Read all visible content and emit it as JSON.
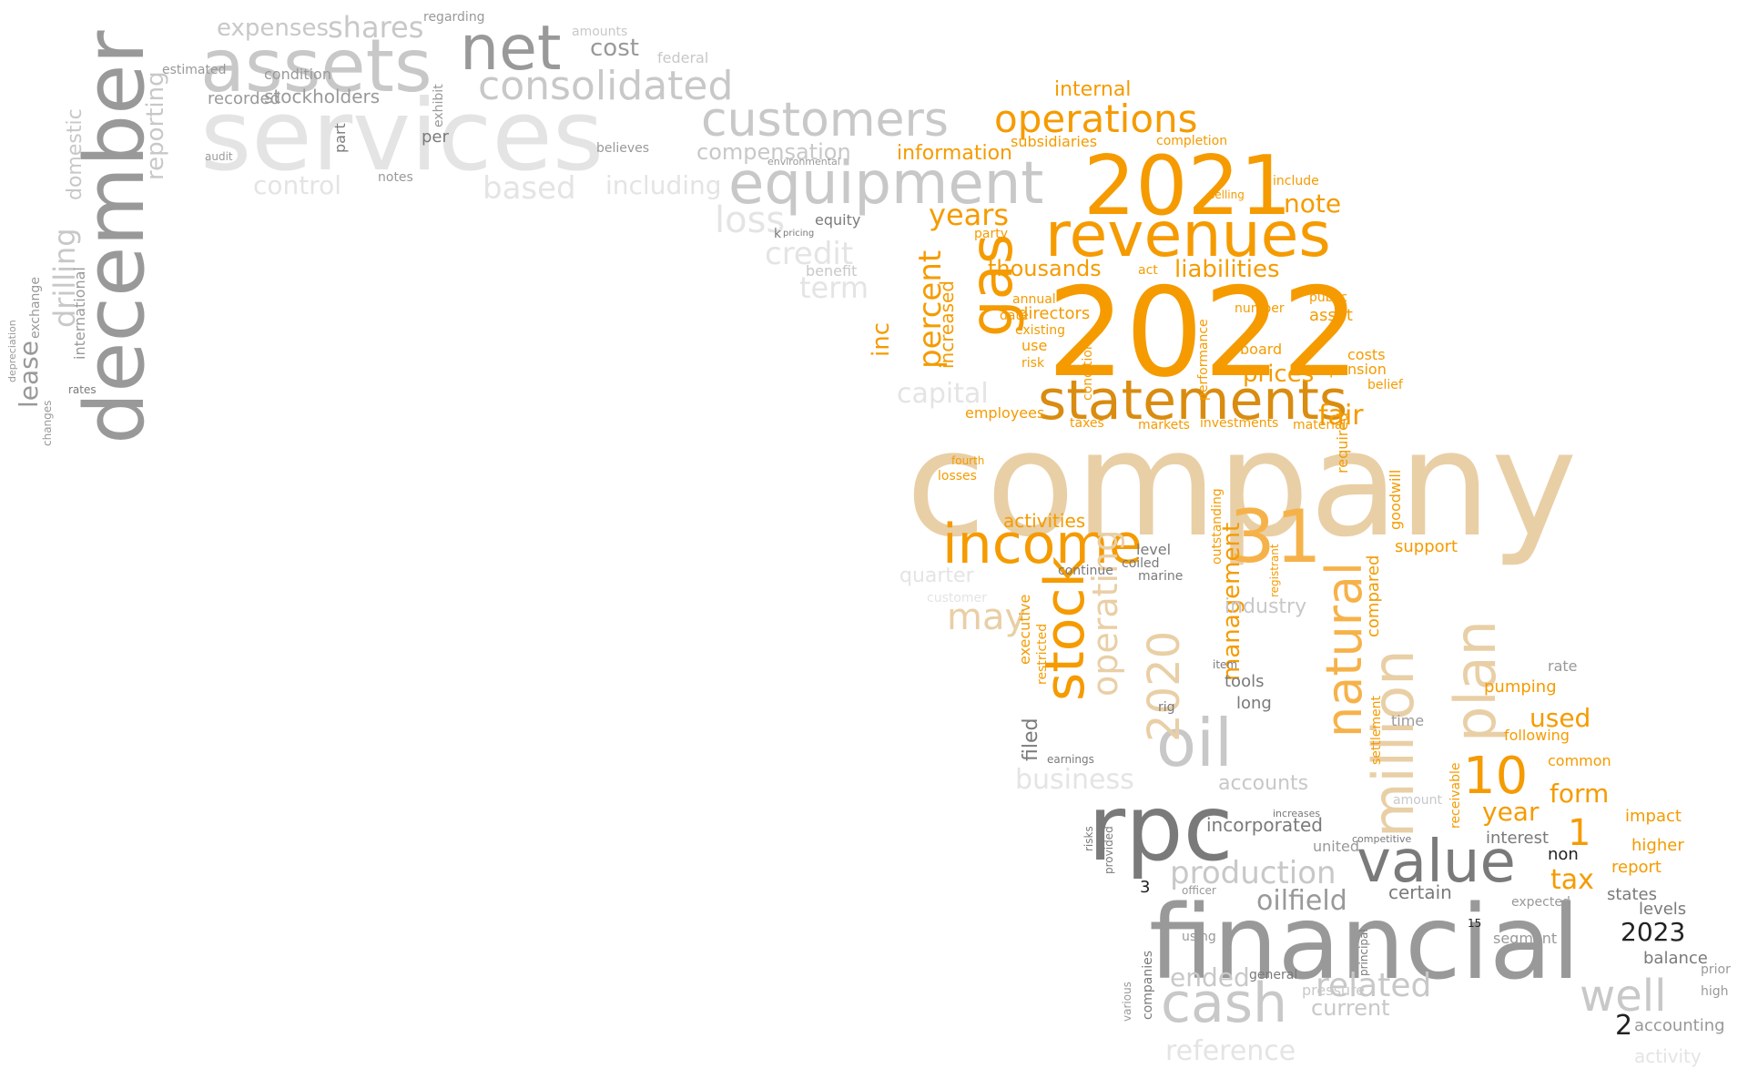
{
  "palette": {
    "orange": "#f59b00",
    "orange_mid": "#f5a623",
    "dark_orange": "#d98c10",
    "gold": "#f6b24a",
    "tan": "#e9cfa6",
    "tan_dark": "#dfb884",
    "gray": "#999999",
    "gray_dark": "#7a7a7a",
    "gray_light": "#c8c8c8",
    "gray_faint": "#e4e4e4",
    "black": "#222222"
  },
  "words": [
    {
      "text": "company",
      "color": "tan"
    },
    {
      "text": "2022",
      "color": "orange"
    },
    {
      "text": "services",
      "color": "gray_faint"
    },
    {
      "text": "financial",
      "color": "gray"
    },
    {
      "text": "december",
      "color": "gray"
    },
    {
      "text": "rpc",
      "color": "gray_dark"
    },
    {
      "text": "statements",
      "color": "dark_orange"
    },
    {
      "text": "2021",
      "color": "orange"
    },
    {
      "text": "revenues",
      "color": "orange"
    },
    {
      "text": "assets",
      "color": "gray_light"
    },
    {
      "text": "net",
      "color": "gray"
    },
    {
      "text": "equipment",
      "color": "gray_light"
    },
    {
      "text": "income",
      "color": "orange"
    },
    {
      "text": "value",
      "color": "gray_dark"
    },
    {
      "text": "oil",
      "color": "gray_light"
    },
    {
      "text": "31",
      "color": "gold"
    },
    {
      "text": "customers",
      "color": "gray_light"
    },
    {
      "text": "consolidated",
      "color": "gray_light"
    },
    {
      "text": "operations",
      "color": "orange"
    },
    {
      "text": "gas",
      "color": "orange"
    },
    {
      "text": "stock",
      "color": "orange"
    },
    {
      "text": "million",
      "color": "tan"
    },
    {
      "text": "natural",
      "color": "gold"
    },
    {
      "text": "cash",
      "color": "gray_light"
    },
    {
      "text": "well",
      "color": "gray_light"
    },
    {
      "text": "plan",
      "color": "tan"
    },
    {
      "text": "10",
      "color": "orange"
    },
    {
      "text": "2020",
      "color": "tan"
    },
    {
      "text": "may",
      "color": "tan"
    },
    {
      "text": "related",
      "color": "gray_light"
    },
    {
      "text": "production",
      "color": "gray_light"
    },
    {
      "text": "oilfield",
      "color": "gray"
    },
    {
      "text": "shares",
      "color": "gray_light"
    },
    {
      "text": "expenses",
      "color": "gray_light"
    },
    {
      "text": "cost",
      "color": "gray"
    },
    {
      "text": "percent",
      "color": "orange"
    },
    {
      "text": "years",
      "color": "orange"
    },
    {
      "text": "liabilities",
      "color": "orange"
    },
    {
      "text": "thousands",
      "color": "orange"
    },
    {
      "text": "information",
      "color": "orange"
    },
    {
      "text": "internal",
      "color": "orange"
    },
    {
      "text": "management",
      "color": "orange"
    },
    {
      "text": "operating",
      "color": "tan"
    },
    {
      "text": "drilling",
      "color": "gray_light"
    },
    {
      "text": "reporting",
      "color": "gray_light"
    },
    {
      "text": "lease",
      "color": "gray"
    },
    {
      "text": "control",
      "color": "gray_faint"
    },
    {
      "text": "based",
      "color": "gray_faint"
    },
    {
      "text": "including",
      "color": "gray_faint"
    },
    {
      "text": "compensation",
      "color": "gray_light"
    },
    {
      "text": "loss",
      "color": "gray_faint"
    },
    {
      "text": "credit",
      "color": "gray_faint"
    },
    {
      "text": "term",
      "color": "gray_faint"
    },
    {
      "text": "capital",
      "color": "gray_faint"
    },
    {
      "text": "stockholders",
      "color": "gray"
    },
    {
      "text": "recorded",
      "color": "gray"
    },
    {
      "text": "condition",
      "color": "gray"
    },
    {
      "text": "estimated",
      "color": "gray"
    },
    {
      "text": "amounts",
      "color": "gray_light"
    },
    {
      "text": "federal",
      "color": "gray_light"
    },
    {
      "text": "note",
      "color": "orange"
    },
    {
      "text": "prices",
      "color": "orange"
    },
    {
      "text": "costs",
      "color": "orange"
    },
    {
      "text": "pension",
      "color": "orange"
    },
    {
      "text": "fair",
      "color": "orange"
    },
    {
      "text": "asset",
      "color": "orange"
    },
    {
      "text": "subsidiaries",
      "color": "orange"
    },
    {
      "text": "completion",
      "color": "orange"
    },
    {
      "text": "employees",
      "color": "orange"
    },
    {
      "text": "activities",
      "color": "orange"
    },
    {
      "text": "inc",
      "color": "orange"
    },
    {
      "text": "increased",
      "color": "orange"
    },
    {
      "text": "directors",
      "color": "orange"
    },
    {
      "text": "form",
      "color": "orange"
    },
    {
      "text": "tax",
      "color": "orange"
    },
    {
      "text": "year",
      "color": "orange"
    },
    {
      "text": "used",
      "color": "orange"
    },
    {
      "text": "report",
      "color": "orange"
    },
    {
      "text": "higher",
      "color": "orange"
    },
    {
      "text": "impact",
      "color": "orange"
    },
    {
      "text": "pumping",
      "color": "orange"
    },
    {
      "text": "following",
      "color": "orange"
    },
    {
      "text": "common",
      "color": "orange"
    },
    {
      "text": "compared",
      "color": "orange"
    },
    {
      "text": "support",
      "color": "orange"
    },
    {
      "text": "goodwill",
      "color": "orange"
    },
    {
      "text": "incorporated",
      "color": "gray_dark"
    },
    {
      "text": "accounts",
      "color": "gray_light"
    },
    {
      "text": "certain",
      "color": "gray_dark"
    },
    {
      "text": "ended",
      "color": "gray_light"
    },
    {
      "text": "current",
      "color": "gray_light"
    },
    {
      "text": "industry",
      "color": "gray_light"
    },
    {
      "text": "tools",
      "color": "gray_dark"
    },
    {
      "text": "long",
      "color": "gray_dark"
    },
    {
      "text": "business",
      "color": "gray_faint"
    },
    {
      "text": "interest",
      "color": "gray_dark"
    },
    {
      "text": "balance",
      "color": "gray_dark"
    },
    {
      "text": "accounting",
      "color": "gray"
    },
    {
      "text": "2023",
      "color": "black"
    },
    {
      "text": "1",
      "color": "orange"
    },
    {
      "text": "2",
      "color": "black"
    },
    {
      "text": "3",
      "color": "black"
    },
    {
      "text": "states",
      "color": "gray_dark"
    },
    {
      "text": "levels",
      "color": "gray_dark"
    },
    {
      "text": "segment",
      "color": "gray"
    },
    {
      "text": "expected",
      "color": "gray"
    },
    {
      "text": "united",
      "color": "gray"
    },
    {
      "text": "time",
      "color": "gray"
    },
    {
      "text": "rate",
      "color": "gray"
    },
    {
      "text": "filed",
      "color": "gray_dark"
    },
    {
      "text": "executive",
      "color": "orange"
    },
    {
      "text": "restricted",
      "color": "orange"
    },
    {
      "text": "continue",
      "color": "gray_dark"
    },
    {
      "text": "level",
      "color": "gray_dark"
    },
    {
      "text": "coiled",
      "color": "gray_dark"
    },
    {
      "text": "marine",
      "color": "gray_dark"
    },
    {
      "text": "outstanding",
      "color": "orange"
    },
    {
      "text": "performance",
      "color": "orange"
    },
    {
      "text": "conditions",
      "color": "orange"
    },
    {
      "text": "existing",
      "color": "orange"
    },
    {
      "text": "risk",
      "color": "orange"
    },
    {
      "text": "use",
      "color": "orange"
    },
    {
      "text": "date",
      "color": "orange"
    },
    {
      "text": "annual",
      "color": "orange"
    },
    {
      "text": "party",
      "color": "orange"
    },
    {
      "text": "act",
      "color": "orange"
    },
    {
      "text": "number",
      "color": "orange"
    },
    {
      "text": "board",
      "color": "orange"
    },
    {
      "text": "public",
      "color": "orange"
    },
    {
      "text": "taxes",
      "color": "orange"
    },
    {
      "text": "markets",
      "color": "orange"
    },
    {
      "text": "investments",
      "color": "orange"
    },
    {
      "text": "material",
      "color": "orange"
    },
    {
      "text": "belief",
      "color": "orange"
    },
    {
      "text": "losses",
      "color": "orange"
    },
    {
      "text": "fourth",
      "color": "orange"
    },
    {
      "text": "include",
      "color": "orange"
    },
    {
      "text": "selling",
      "color": "orange"
    },
    {
      "text": "registrant",
      "color": "orange"
    },
    {
      "text": "required",
      "color": "orange"
    },
    {
      "text": "receivable",
      "color": "orange"
    },
    {
      "text": "settlement",
      "color": "orange"
    },
    {
      "text": "non",
      "color": "black"
    },
    {
      "text": "well",
      "color": "gray_light"
    },
    {
      "text": "per",
      "color": "gray_dark"
    },
    {
      "text": "part",
      "color": "gray_dark"
    },
    {
      "text": "exhibit",
      "color": "gray"
    },
    {
      "text": "regarding",
      "color": "gray"
    },
    {
      "text": "equity",
      "color": "gray_dark"
    },
    {
      "text": "benefit",
      "color": "gray_light"
    },
    {
      "text": "believes",
      "color": "gray"
    },
    {
      "text": "notes",
      "color": "gray"
    },
    {
      "text": "audit",
      "color": "gray"
    },
    {
      "text": "international",
      "color": "gray"
    },
    {
      "text": "domestic",
      "color": "gray_light"
    },
    {
      "text": "exchange",
      "color": "gray"
    },
    {
      "text": "changes",
      "color": "gray"
    },
    {
      "text": "depreciation",
      "color": "gray"
    },
    {
      "text": "rates",
      "color": "gray_dark"
    },
    {
      "text": "environmental",
      "color": "gray"
    },
    {
      "text": "using",
      "color": "gray"
    },
    {
      "text": "general",
      "color": "gray_dark"
    },
    {
      "text": "companies",
      "color": "gray_dark"
    },
    {
      "text": "various",
      "color": "gray"
    },
    {
      "text": "principal",
      "color": "gray_dark"
    },
    {
      "text": "pressure",
      "color": "gray_light"
    },
    {
      "text": "amount",
      "color": "gray_light"
    },
    {
      "text": "earnings",
      "color": "gray_dark"
    },
    {
      "text": "officer",
      "color": "gray"
    },
    {
      "text": "reference",
      "color": "gray_faint"
    },
    {
      "text": "activity",
      "color": "gray_faint"
    },
    {
      "text": "prior",
      "color": "gray"
    },
    {
      "text": "high",
      "color": "gray"
    },
    {
      "text": "quarter",
      "color": "gray_faint"
    },
    {
      "text": "customer",
      "color": "gray_faint"
    },
    {
      "text": "k",
      "color": "gray_dark"
    },
    {
      "text": "pricing",
      "color": "gray_dark"
    },
    {
      "text": "rig",
      "color": "gray_dark"
    },
    {
      "text": "item",
      "color": "gray_dark"
    },
    {
      "text": "15",
      "color": "black"
    },
    {
      "text": "competitive",
      "color": "gray_dark"
    },
    {
      "text": "increases",
      "color": "gray_dark"
    },
    {
      "text": "provided",
      "color": "gray_dark"
    },
    {
      "text": "risks",
      "color": "gray_dark"
    }
  ]
}
